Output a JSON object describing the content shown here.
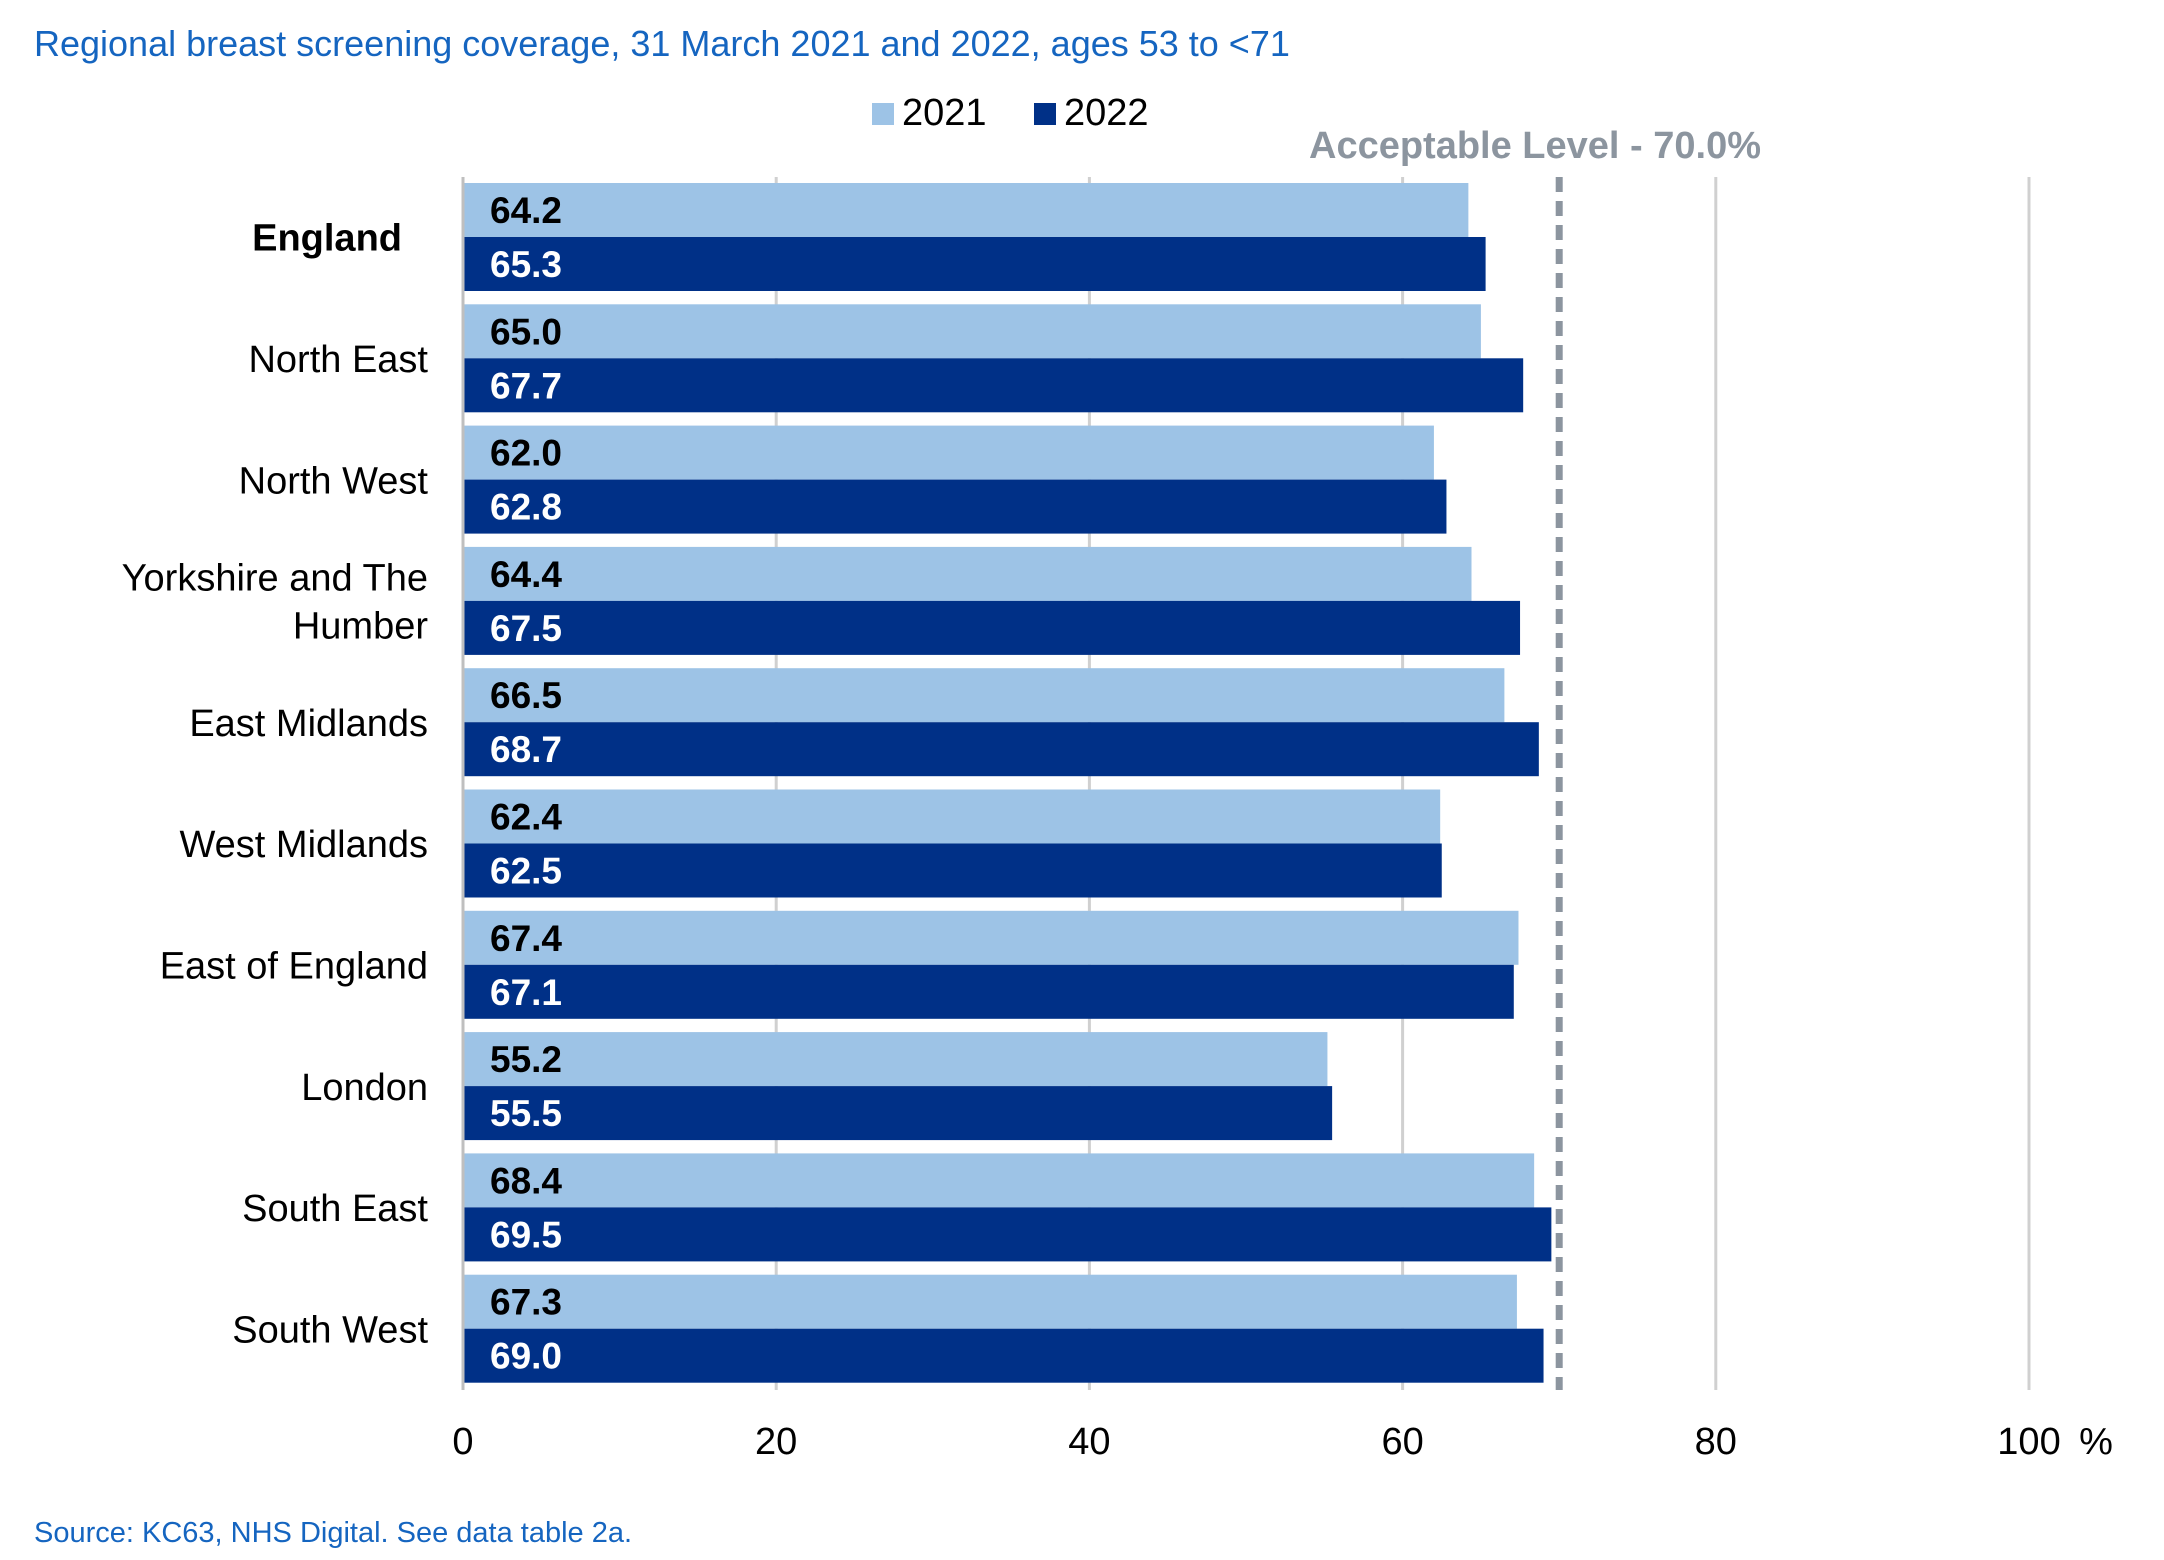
{
  "chart_data": {
    "type": "bar",
    "orientation": "horizontal",
    "title": "Regional breast screening coverage, 31 March 2021 and 2022, ages 53 to <71",
    "source": "Source: KC63, NHS Digital. See data table 2a.",
    "categories": [
      "England",
      "North East",
      "North West",
      "Yorkshire and The Humber",
      "East Midlands",
      "West Midlands",
      "East of England",
      "London",
      "South East",
      "South West"
    ],
    "category_label_lines": [
      [
        "England"
      ],
      [
        "North East"
      ],
      [
        "North West"
      ],
      [
        "Yorkshire and The",
        "Humber"
      ],
      [
        "East Midlands"
      ],
      [
        "West Midlands"
      ],
      [
        "East of England"
      ],
      [
        "London"
      ],
      [
        "South East"
      ],
      [
        "South West"
      ]
    ],
    "bold_category": "England",
    "series": [
      {
        "name": "2021",
        "color": "#9DC3E6",
        "label_color": "#000000",
        "values": [
          64.2,
          65.0,
          62.0,
          64.4,
          66.5,
          62.4,
          67.4,
          55.2,
          68.4,
          67.3
        ],
        "labels": [
          "64.2",
          "65.0",
          "62.0",
          "64.4",
          "66.5",
          "62.4",
          "67.4",
          "55.2",
          "68.4",
          "67.3"
        ]
      },
      {
        "name": "2022",
        "color": "#003087",
        "label_color": "#ffffff",
        "values": [
          65.3,
          67.7,
          62.8,
          67.5,
          68.7,
          62.5,
          67.1,
          55.5,
          69.5,
          69.0
        ],
        "labels": [
          "65.3",
          "67.7",
          "62.8",
          "67.5",
          "68.7",
          "62.5",
          "67.1",
          "55.5",
          "69.5",
          "69.0"
        ]
      }
    ],
    "xlim": [
      0,
      100
    ],
    "xticks": [
      0,
      20,
      40,
      60,
      80,
      100
    ],
    "xtick_labels": [
      "0",
      "20",
      "40",
      "60",
      "80",
      "100"
    ],
    "x_unit": "%",
    "grid": true,
    "legend_position": "top",
    "reference_line": {
      "value": 70.0,
      "label": "Acceptable Level - 70.0%",
      "color": "#8C959F",
      "style": "dashed"
    },
    "title_color": "#1565C0",
    "source_color": "#1565C0"
  }
}
